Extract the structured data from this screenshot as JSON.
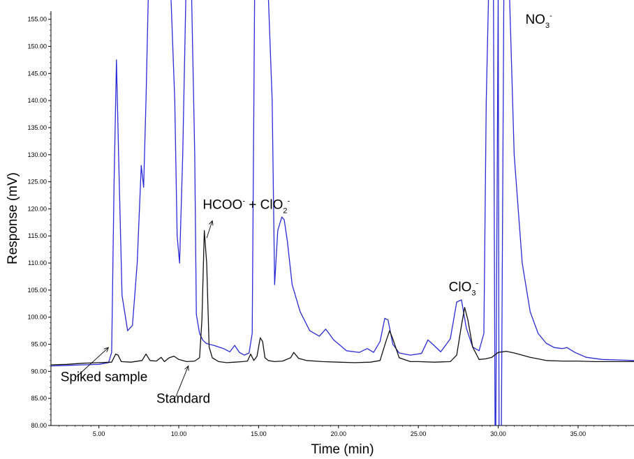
{
  "chart_data": {
    "type": "line",
    "xlabel": "Time (min)",
    "ylabel": "Response (mV)",
    "xlim": [
      2.0,
      38.5
    ],
    "ylim": [
      80.0,
      156.5
    ],
    "x_ticks": [
      5,
      10,
      15,
      20,
      25,
      30,
      35
    ],
    "x_tick_labels": [
      "5.00",
      "10.00",
      "15.00",
      "20.00",
      "25.00",
      "30.00",
      "35.00"
    ],
    "y_ticks": [
      80,
      85,
      90,
      95,
      100,
      105,
      110,
      115,
      120,
      125,
      130,
      135,
      140,
      145,
      150,
      155
    ],
    "y_tick_labels": [
      "80.00",
      "85.00",
      "90.00",
      "95.00",
      "100.00",
      "105.00",
      "110.00",
      "115.00",
      "120.00",
      "125.00",
      "130.00",
      "135.00",
      "140.00",
      "145.00",
      "150.00",
      "155.00"
    ],
    "grid": false,
    "colors": {
      "spiked": "#2a2ad6",
      "standard": "#111111"
    },
    "series": [
      {
        "name": "Spiked sample",
        "color": "#2a2ad6",
        "x": [
          2.0,
          3.0,
          4.0,
          5.0,
          5.6,
          5.8,
          5.95,
          6.1,
          6.25,
          6.45,
          6.8,
          7.1,
          7.4,
          7.65,
          7.8,
          7.95,
          8.1,
          8.25,
          8.45,
          9.0,
          9.5,
          9.75,
          9.9,
          10.05,
          10.25,
          10.45,
          10.6,
          10.8,
          11.0,
          11.1,
          11.3,
          11.5,
          11.7,
          11.9,
          12.2,
          12.8,
          13.2,
          13.5,
          13.8,
          14.1,
          14.4,
          14.6,
          14.75,
          14.9,
          15.2,
          15.6,
          15.85,
          16.0,
          16.2,
          16.45,
          16.6,
          16.8,
          17.1,
          17.6,
          18.2,
          18.8,
          19.2,
          19.7,
          20.5,
          21.3,
          21.8,
          22.2,
          22.6,
          22.9,
          23.1,
          23.4,
          23.8,
          24.5,
          25.2,
          25.6,
          25.9,
          26.4,
          27.0,
          27.4,
          27.7,
          28.0,
          28.4,
          28.8,
          29.1,
          29.25,
          29.4,
          29.55,
          29.7,
          29.8,
          29.85,
          30.0,
          30.05,
          30.2,
          30.35,
          30.5,
          30.7,
          31.0,
          31.5,
          32.0,
          32.5,
          33.0,
          33.5,
          34.0,
          34.3,
          34.8,
          35.5,
          36.5,
          37.5,
          38.5
        ],
        "y": [
          91.0,
          91.1,
          91.2,
          91.3,
          91.6,
          93.5,
          125.0,
          147.5,
          128.0,
          104.0,
          97.5,
          98.5,
          110.0,
          128.0,
          124.0,
          140.0,
          160.0,
          160.0,
          160.0,
          160.0,
          160.0,
          140.0,
          115.0,
          110.0,
          130.0,
          160.0,
          160.0,
          160.0,
          130.0,
          100.5,
          97.0,
          95.8,
          95.2,
          95.0,
          94.8,
          94.2,
          93.6,
          94.8,
          93.5,
          93.0,
          93.4,
          97.0,
          160.0,
          160.0,
          160.0,
          160.0,
          140.0,
          106.0,
          116.0,
          118.5,
          118.0,
          114.0,
          106.0,
          101.0,
          97.5,
          96.5,
          97.8,
          95.8,
          93.8,
          93.5,
          94.2,
          93.5,
          95.5,
          99.8,
          99.5,
          95.0,
          93.4,
          93.0,
          93.3,
          95.8,
          95.0,
          93.6,
          96.0,
          102.8,
          103.2,
          98.0,
          94.5,
          93.8,
          97.0,
          140.0,
          160.0,
          160.0,
          160.0,
          80.0,
          80.0,
          160.0,
          80.0,
          80.0,
          160.0,
          160.0,
          160.0,
          130.0,
          110.0,
          101.0,
          97.0,
          95.2,
          94.4,
          94.2,
          94.4,
          93.5,
          92.6,
          92.2,
          92.1,
          92.0
        ]
      },
      {
        "name": "Standard",
        "color": "#111111",
        "x": [
          2.0,
          3.0,
          4.0,
          5.0,
          5.8,
          6.05,
          6.2,
          6.4,
          7.0,
          7.7,
          7.95,
          8.2,
          8.6,
          8.9,
          9.1,
          9.4,
          9.7,
          10.0,
          10.5,
          11.0,
          11.3,
          11.45,
          11.6,
          11.75,
          11.9,
          12.1,
          12.5,
          13.0,
          13.5,
          14.0,
          14.3,
          14.5,
          14.7,
          14.9,
          15.1,
          15.25,
          15.4,
          15.6,
          16.0,
          16.5,
          17.0,
          17.2,
          17.5,
          18.0,
          19.0,
          20.0,
          21.0,
          22.0,
          22.6,
          23.0,
          23.2,
          23.4,
          23.8,
          24.5,
          25.0,
          26.0,
          27.0,
          27.4,
          27.7,
          27.9,
          28.1,
          28.4,
          28.8,
          29.2,
          29.6,
          30.0,
          30.5,
          31.0,
          32.0,
          33.0,
          34.0,
          35.0,
          36.0,
          37.0,
          38.5
        ],
        "y": [
          91.2,
          91.3,
          91.5,
          91.6,
          91.7,
          93.2,
          93.0,
          91.8,
          91.7,
          92.0,
          93.2,
          92.0,
          91.9,
          92.6,
          91.8,
          92.5,
          92.8,
          92.2,
          91.8,
          91.9,
          92.5,
          99.5,
          116.0,
          110.0,
          94.5,
          92.5,
          91.8,
          91.6,
          91.7,
          91.8,
          91.9,
          93.2,
          92.0,
          92.8,
          96.2,
          95.5,
          92.5,
          92.0,
          91.8,
          91.9,
          92.5,
          93.5,
          92.4,
          92.0,
          91.8,
          91.7,
          91.6,
          91.7,
          92.0,
          95.8,
          97.5,
          96.0,
          92.5,
          91.8,
          91.8,
          91.7,
          91.8,
          93.0,
          98.5,
          101.8,
          99.5,
          94.5,
          92.2,
          92.3,
          92.6,
          93.5,
          93.7,
          93.4,
          92.6,
          92.0,
          91.9,
          91.9,
          91.8,
          91.8,
          91.8
        ]
      }
    ],
    "annotations": [
      {
        "base": "HCOO",
        "sup1": "-",
        "mid": " + ClO",
        "sub": "2",
        "sup2": "-",
        "x": 11.5,
        "y": 120.0
      },
      {
        "base": "ClO",
        "sub": "3",
        "sup": "-",
        "x": 26.9,
        "y": 104.8
      },
      {
        "base": "NO",
        "sub": "3",
        "sup": "-",
        "x": 31.7,
        "y": 154.2
      },
      {
        "text": "Spiked sample",
        "x": 2.6,
        "y": 88.2
      },
      {
        "text": "Standard",
        "x": 8.6,
        "y": 84.2
      }
    ]
  }
}
